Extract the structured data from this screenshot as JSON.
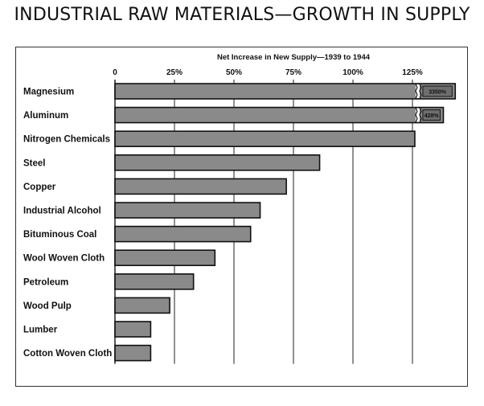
{
  "page_title": "INDUSTRIAL RAW MATERIALS—GROWTH IN SUPPLY",
  "chart_data": {
    "type": "bar",
    "orientation": "horizontal",
    "title": "Net Increase in New Supply—1939 to 1944",
    "categories": [
      "Magnesium",
      "Aluminum",
      "Nitrogen Chemicals",
      "Steel",
      "Copper",
      "Industrial Alcohol",
      "Bituminous Coal",
      "Wool Woven Cloth",
      "Petroleum",
      "Wood Pulp",
      "Lumber",
      "Cotton Woven Cloth"
    ],
    "values": [
      3350,
      428,
      126,
      86,
      72,
      61,
      57,
      42,
      33,
      23,
      15,
      15
    ],
    "value_labels": [
      "3350%",
      "428%",
      "",
      "",
      "",
      "",
      "",
      "",
      "",
      "",
      "",
      ""
    ],
    "broken_bars": [
      0,
      1
    ],
    "xlim": [
      0,
      145
    ],
    "xticks": [
      0,
      25,
      50,
      75,
      100,
      125
    ],
    "xtick_labels": [
      "0",
      "25%",
      "50%",
      "75%",
      "100%",
      "125%"
    ],
    "grid": true,
    "bar_color": "#8a8a8a"
  }
}
